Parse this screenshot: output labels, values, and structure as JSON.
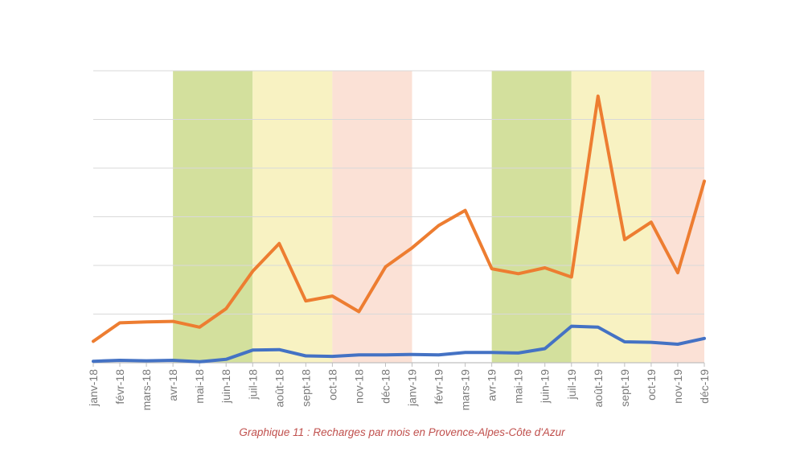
{
  "caption": "Graphique 11 : Recharges par mois en Provence-Alpes-Côte d'Azur",
  "colors": {
    "series_orange": "#ed7d31",
    "series_blue": "#4472c4",
    "band_green": "#d3e09d",
    "band_yellow": "#f8f2c2",
    "band_pink": "#fbe1d6",
    "grid": "#d9d9d9",
    "axis": "#bfbfbf"
  },
  "chart_data": {
    "type": "line",
    "title": "",
    "xlabel": "",
    "ylabel": "",
    "ylim": [
      0,
      6
    ],
    "grid": true,
    "y_tick_labels_shown": false,
    "categories": [
      "janv-18",
      "févr-18",
      "mars-18",
      "avr-18",
      "mai-18",
      "juin-18",
      "juil-18",
      "août-18",
      "sept-18",
      "oct-18",
      "nov-18",
      "déc-18",
      "janv-19",
      "févr-19",
      "mars-19",
      "avr-19",
      "mai-19",
      "juin-19",
      "juil-19",
      "août-19",
      "sept-19",
      "oct-19",
      "nov-19",
      "déc-19"
    ],
    "series": [
      {
        "color": "orange",
        "values": [
          0.44,
          0.82,
          0.84,
          0.85,
          0.73,
          1.11,
          1.88,
          2.45,
          1.27,
          1.37,
          1.05,
          1.97,
          2.36,
          2.82,
          3.13,
          1.93,
          1.83,
          1.95,
          1.76,
          5.48,
          2.53,
          2.89,
          1.85,
          3.73
        ]
      },
      {
        "color": "blue",
        "values": [
          0.03,
          0.05,
          0.04,
          0.05,
          0.02,
          0.07,
          0.26,
          0.27,
          0.14,
          0.13,
          0.16,
          0.16,
          0.17,
          0.16,
          0.21,
          0.21,
          0.2,
          0.29,
          0.75,
          0.73,
          0.43,
          0.42,
          0.38,
          0.5
        ]
      }
    ],
    "bands": [
      {
        "from": "avr-18",
        "to": "juil-18",
        "color": "green"
      },
      {
        "from": "juil-18",
        "to": "oct-18",
        "color": "yellow"
      },
      {
        "from": "oct-18",
        "to": "janv-19",
        "color": "pink"
      },
      {
        "from": "avr-19",
        "to": "juil-19",
        "color": "green"
      },
      {
        "from": "juil-19",
        "to": "oct-19",
        "color": "yellow"
      },
      {
        "from": "oct-19",
        "to": "déc-19",
        "color": "pink"
      }
    ]
  }
}
